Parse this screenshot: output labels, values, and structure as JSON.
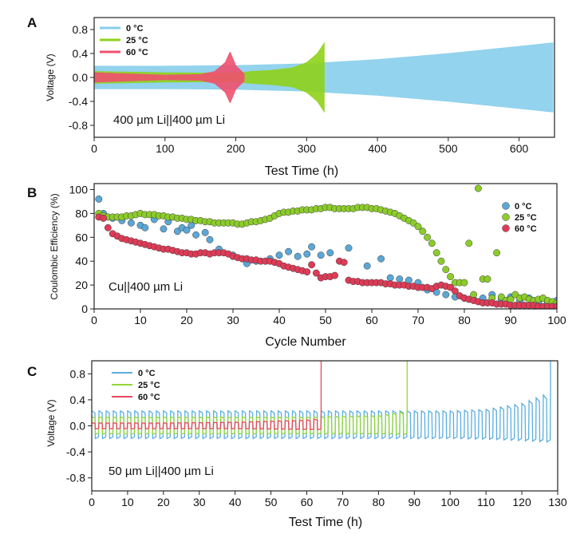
{
  "chart_data": [
    {
      "panel": "A",
      "type": "line",
      "xlabel": "Test Time (h)",
      "ylabel": "Voltage (V)",
      "xlim": [
        0,
        650
      ],
      "ylim": [
        -1.0,
        1.0
      ],
      "xticks": [
        0,
        100,
        200,
        300,
        400,
        500,
        600
      ],
      "yticks": [
        0.8,
        0.4,
        0.0,
        -0.4,
        -0.8
      ],
      "ytick_labels": [
        "0.8",
        "0.4",
        "0.0",
        "-0.4",
        "-0.8"
      ],
      "annotation": "400 µm Li||400 µm Li",
      "series": [
        {
          "name": "0 °C",
          "color": "#87ceeb",
          "x": [
            0,
            100,
            200,
            300,
            400,
            500,
            600,
            648
          ],
          "amplitude": [
            0.19,
            0.19,
            0.2,
            0.23,
            0.3,
            0.4,
            0.52,
            0.58
          ]
        },
        {
          "name": "25 °C",
          "color": "#8fd11a",
          "x": [
            0,
            100,
            200,
            220,
            250,
            280,
            300,
            315,
            325
          ],
          "amplitude": [
            0.1,
            0.08,
            0.07,
            0.1,
            0.12,
            0.16,
            0.25,
            0.4,
            0.58
          ]
        },
        {
          "name": "60 °C",
          "color": "#f0506e",
          "x": [
            0,
            100,
            150,
            170,
            185,
            192,
            200,
            212
          ],
          "amplitude": [
            0.08,
            0.04,
            0.05,
            0.1,
            0.25,
            0.43,
            0.2,
            0.06
          ]
        }
      ]
    },
    {
      "panel": "B",
      "type": "scatter",
      "xlabel": "Cycle Number",
      "ylabel": "Coulombic Efficiency (%)",
      "xlim": [
        0,
        100
      ],
      "ylim": [
        0,
        105
      ],
      "xticks": [
        0,
        10,
        20,
        30,
        40,
        50,
        60,
        70,
        80,
        90,
        100
      ],
      "yticks": [
        0,
        20,
        40,
        60,
        80,
        100
      ],
      "annotation": "Cu||400 µm Li",
      "series": [
        {
          "name": "0 °C",
          "color": "#5ba7d6",
          "x": [
            1,
            2,
            4,
            6,
            8,
            10,
            11,
            13,
            15,
            16,
            18,
            19,
            20,
            21,
            22,
            24,
            25,
            27,
            30,
            33,
            35,
            38,
            40,
            42,
            44,
            46,
            47,
            49,
            51,
            55,
            59,
            62,
            64,
            66,
            68,
            70,
            72,
            74,
            76,
            78,
            80,
            82,
            84,
            86,
            88,
            90,
            92,
            94,
            96,
            98,
            100
          ],
          "values": [
            92,
            80,
            76,
            74,
            72,
            70,
            68,
            75,
            67,
            73,
            65,
            68,
            66,
            70,
            62,
            64,
            58,
            50,
            45,
            38,
            40,
            42,
            45,
            48,
            44,
            46,
            52,
            45,
            47,
            51,
            36,
            42,
            26,
            25,
            24,
            22,
            16,
            14,
            12,
            10,
            9,
            8,
            9,
            12,
            8,
            10,
            7,
            9,
            6,
            5,
            7
          ]
        },
        {
          "name": "25 °C",
          "color": "#8ccc2b",
          "x": [
            1,
            2,
            3,
            4,
            5,
            6,
            7,
            8,
            9,
            10,
            11,
            12,
            13,
            14,
            15,
            16,
            17,
            18,
            19,
            20,
            21,
            22,
            23,
            24,
            25,
            26,
            27,
            28,
            29,
            30,
            31,
            32,
            33,
            34,
            35,
            36,
            37,
            38,
            39,
            40,
            41,
            42,
            43,
            44,
            45,
            46,
            47,
            48,
            49,
            50,
            51,
            52,
            53,
            54,
            55,
            56,
            57,
            58,
            59,
            60,
            61,
            62,
            63,
            64,
            65,
            66,
            67,
            68,
            69,
            70,
            71,
            72,
            73,
            74,
            75,
            76,
            77,
            78,
            79,
            80,
            81,
            82,
            83,
            84,
            85,
            86,
            87,
            88,
            89,
            90,
            91,
            92,
            93,
            94,
            95,
            96,
            97,
            98,
            99,
            100
          ],
          "values": [
            80,
            78,
            77,
            77,
            77,
            77,
            78,
            78,
            79,
            80,
            79,
            79,
            79,
            78,
            78,
            77,
            77,
            76,
            76,
            75,
            75,
            74,
            74,
            73,
            73,
            72,
            72,
            72,
            72,
            72,
            71,
            71,
            72,
            73,
            73,
            74,
            75,
            76,
            78,
            80,
            81,
            81,
            82,
            82,
            83,
            83,
            83,
            84,
            84,
            85,
            85,
            84,
            84,
            84,
            84,
            84,
            85,
            85,
            85,
            84,
            84,
            83,
            82,
            81,
            80,
            78,
            76,
            74,
            72,
            69,
            65,
            60,
            55,
            47,
            40,
            33,
            27,
            22,
            22,
            22,
            55,
            12,
            101,
            25,
            25,
            9,
            47,
            10,
            7,
            8,
            12,
            9,
            10,
            8,
            7,
            8,
            9,
            7,
            6,
            5
          ]
        },
        {
          "name": "60 °C",
          "color": "#de3b57",
          "x": [
            1,
            2,
            3,
            4,
            5,
            6,
            7,
            8,
            9,
            10,
            11,
            12,
            13,
            14,
            15,
            16,
            17,
            18,
            19,
            20,
            21,
            22,
            23,
            24,
            25,
            26,
            27,
            28,
            29,
            30,
            31,
            32,
            33,
            34,
            35,
            36,
            37,
            38,
            39,
            40,
            41,
            42,
            43,
            44,
            45,
            46,
            47,
            48,
            49,
            50,
            51,
            52,
            53,
            54,
            55,
            56,
            57,
            58,
            59,
            60,
            61,
            62,
            63,
            64,
            65,
            66,
            67,
            68,
            69,
            70,
            71,
            72,
            73,
            74,
            75,
            76,
            77,
            78,
            79,
            80,
            81,
            82,
            83,
            84,
            85,
            86,
            87,
            88,
            89,
            90,
            91,
            92,
            93,
            94,
            95,
            96,
            97,
            98,
            99,
            100
          ],
          "values": [
            77,
            76,
            68,
            63,
            61,
            59,
            58,
            57,
            56,
            55,
            54,
            53,
            52,
            51,
            50,
            50,
            49,
            48,
            47,
            47,
            46,
            46,
            47,
            47,
            46,
            47,
            47,
            47,
            46,
            44,
            43,
            42,
            42,
            41,
            41,
            40,
            40,
            40,
            39,
            38,
            36,
            35,
            34,
            33,
            32,
            31,
            37,
            30,
            26,
            27,
            27,
            28,
            40,
            39,
            24,
            23,
            23,
            22,
            22,
            22,
            22,
            22,
            21,
            21,
            20,
            20,
            20,
            19,
            19,
            18,
            18,
            18,
            17,
            19,
            20,
            19,
            18,
            15,
            11,
            9,
            8,
            7,
            6,
            5,
            5,
            5,
            4,
            4,
            4,
            3,
            3,
            3,
            3,
            3,
            3,
            2,
            2,
            2,
            2,
            2
          ]
        }
      ]
    },
    {
      "panel": "C",
      "type": "line",
      "xlabel": "Test Time (h)",
      "ylabel": "Voltage (V)",
      "xlim": [
        0,
        130
      ],
      "ylim": [
        -1.0,
        1.0
      ],
      "xticks": [
        0,
        10,
        20,
        30,
        40,
        50,
        60,
        70,
        80,
        90,
        100,
        110,
        120,
        130
      ],
      "yticks": [
        0.8,
        0.4,
        0.0,
        -0.4,
        -0.8
      ],
      "ytick_labels": [
        "0.8",
        "0.4",
        "0.0",
        "-0.4",
        "-0.8"
      ],
      "annotation": "50 µm Li||400 µm Li",
      "series": [
        {
          "name": "0 °C",
          "color": "#5aaee0",
          "end_x": 128,
          "x": [
            0,
            20,
            40,
            60,
            80,
            100,
            110,
            120,
            128
          ],
          "high": [
            0.2,
            0.2,
            0.2,
            0.2,
            0.2,
            0.2,
            0.22,
            0.3,
            0.45
          ],
          "low": [
            -0.17,
            -0.17,
            -0.17,
            -0.17,
            -0.17,
            -0.17,
            -0.18,
            -0.2,
            -0.22
          ]
        },
        {
          "name": "25 °C",
          "color": "#93d63a",
          "end_x": 88,
          "x": [
            0,
            20,
            40,
            60,
            80,
            88
          ],
          "high": [
            0.12,
            0.12,
            0.12,
            0.12,
            0.14,
            0.2
          ],
          "low": [
            -0.11,
            -0.11,
            -0.11,
            -0.11,
            -0.11,
            -0.12
          ]
        },
        {
          "name": "60 °C",
          "color": "#ea4560",
          "end_x": 64,
          "x": [
            0,
            20,
            40,
            60,
            64
          ],
          "high": [
            0.04,
            0.04,
            0.05,
            0.08,
            0.1
          ],
          "low": [
            -0.04,
            -0.04,
            -0.04,
            -0.05,
            -0.05
          ]
        }
      ]
    }
  ],
  "panels": {
    "A": {
      "letter": "A"
    },
    "B": {
      "letter": "B"
    },
    "C": {
      "letter": "C"
    }
  }
}
